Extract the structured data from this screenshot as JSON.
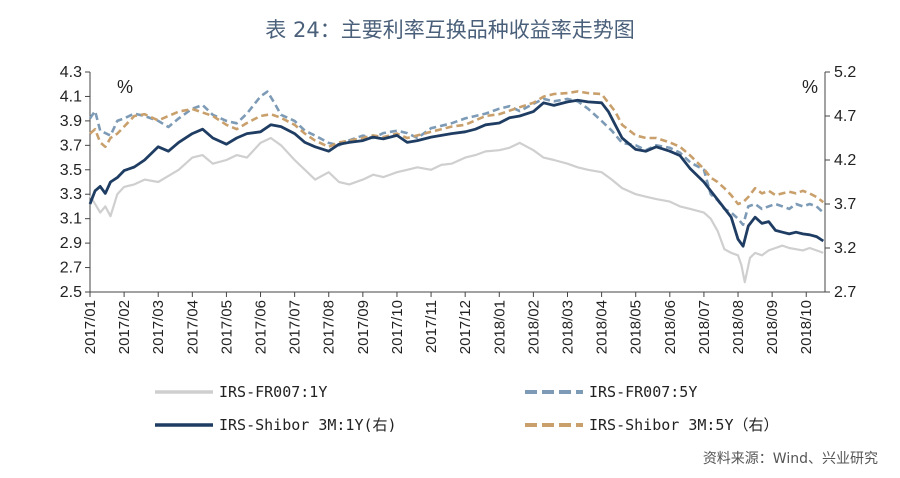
{
  "title": "表 24：主要利率互换品种收益率走势图",
  "source": "资料来源：Wind、兴业研究",
  "chart_data": {
    "type": "line",
    "left_unit": "%",
    "right_unit": "%",
    "left_axis": {
      "ticks": [
        "2.5",
        "2.7",
        "2.9",
        "3.1",
        "3.3",
        "3.5",
        "3.7",
        "3.9",
        "4.1",
        "4.3"
      ],
      "ylim": [
        2.5,
        4.3
      ]
    },
    "right_axis": {
      "ticks": [
        "2.7",
        "3.2",
        "3.7",
        "4.2",
        "4.7",
        "5.2"
      ],
      "ylim": [
        2.7,
        5.2
      ]
    },
    "x_ticks": [
      "2017/01",
      "2017/02",
      "2017/03",
      "2017/04",
      "2017/05",
      "2017/06",
      "2017/07",
      "2017/08",
      "2017/09",
      "2017/10",
      "2017/11",
      "2017/12",
      "2018/01",
      "2018/02",
      "2018/03",
      "2018/04",
      "2018/05",
      "2018/06",
      "2018/07",
      "2018/08",
      "2018/09",
      "2018/10"
    ],
    "x_range": [
      0,
      21.55
    ],
    "grid": false,
    "legend_position": "bottom",
    "series": [
      {
        "name": "IRS-FR007:1Y",
        "axis": "left",
        "color": "#cfcfcf",
        "style": "solid",
        "x": [
          0,
          0.15,
          0.3,
          0.45,
          0.6,
          0.8,
          1,
          1.3,
          1.6,
          2,
          2.3,
          2.6,
          3,
          3.3,
          3.6,
          4,
          4.3,
          4.6,
          5,
          5.3,
          5.6,
          6,
          6.3,
          6.6,
          7,
          7.3,
          7.6,
          8,
          8.3,
          8.6,
          9,
          9.3,
          9.6,
          10,
          10.3,
          10.6,
          11,
          11.3,
          11.6,
          12,
          12.3,
          12.6,
          13,
          13.3,
          13.6,
          14,
          14.3,
          14.6,
          15,
          15.3,
          15.6,
          16,
          16.3,
          16.6,
          17,
          17.3,
          17.6,
          18,
          18.2,
          18.4,
          18.6,
          18.8,
          19,
          19.1,
          19.2,
          19.35,
          19.5,
          19.7,
          19.9,
          20.1,
          20.3,
          20.5,
          20.7,
          20.9,
          21.1,
          21.3,
          21.5
        ],
        "y": [
          3.29,
          3.22,
          3.15,
          3.2,
          3.12,
          3.3,
          3.36,
          3.38,
          3.42,
          3.4,
          3.45,
          3.5,
          3.6,
          3.62,
          3.55,
          3.58,
          3.62,
          3.6,
          3.72,
          3.76,
          3.7,
          3.58,
          3.5,
          3.42,
          3.48,
          3.4,
          3.38,
          3.42,
          3.46,
          3.44,
          3.48,
          3.5,
          3.52,
          3.5,
          3.54,
          3.55,
          3.6,
          3.62,
          3.65,
          3.66,
          3.68,
          3.72,
          3.66,
          3.6,
          3.58,
          3.55,
          3.52,
          3.5,
          3.48,
          3.42,
          3.35,
          3.3,
          3.28,
          3.26,
          3.24,
          3.2,
          3.18,
          3.15,
          3.1,
          3.0,
          2.85,
          2.82,
          2.8,
          2.72,
          2.58,
          2.78,
          2.82,
          2.8,
          2.84,
          2.86,
          2.88,
          2.86,
          2.85,
          2.84,
          2.86,
          2.84,
          2.82
        ]
      },
      {
        "name": "IRS-FR007:5Y",
        "axis": "left",
        "color": "#7d9bb6",
        "style": "dashed",
        "x": [
          0,
          0.15,
          0.3,
          0.45,
          0.6,
          0.8,
          1,
          1.3,
          1.6,
          2,
          2.3,
          2.6,
          3,
          3.3,
          3.6,
          4,
          4.3,
          4.6,
          5,
          5.2,
          5.4,
          5.6,
          6,
          6.3,
          6.6,
          7,
          7.3,
          7.6,
          8,
          8.3,
          8.6,
          9,
          9.3,
          9.6,
          10,
          10.3,
          10.6,
          11,
          11.3,
          11.6,
          12,
          12.3,
          12.6,
          13,
          13.3,
          13.6,
          14,
          14.3,
          14.6,
          15,
          15.3,
          15.6,
          16,
          16.3,
          16.6,
          17,
          17.3,
          17.6,
          18,
          18.2,
          18.4,
          18.6,
          18.8,
          19,
          19.15,
          19.3,
          19.5,
          19.7,
          19.9,
          20.1,
          20.3,
          20.5,
          20.7,
          20.9,
          21.1,
          21.3,
          21.5
        ],
        "y": [
          3.92,
          3.98,
          3.82,
          3.8,
          3.78,
          3.9,
          3.92,
          3.96,
          3.94,
          3.9,
          3.85,
          3.92,
          4.0,
          4.03,
          3.95,
          3.9,
          3.88,
          3.96,
          4.1,
          4.14,
          4.05,
          3.95,
          3.9,
          3.82,
          3.78,
          3.72,
          3.7,
          3.74,
          3.78,
          3.76,
          3.8,
          3.82,
          3.8,
          3.76,
          3.84,
          3.86,
          3.88,
          3.92,
          3.94,
          3.96,
          4.0,
          4.02,
          3.98,
          4.04,
          4.08,
          4.06,
          4.08,
          4.06,
          4.0,
          3.9,
          3.82,
          3.72,
          3.7,
          3.66,
          3.7,
          3.68,
          3.64,
          3.56,
          3.5,
          3.3,
          3.25,
          3.18,
          3.15,
          3.1,
          3.05,
          3.2,
          3.22,
          3.18,
          3.2,
          3.22,
          3.2,
          3.18,
          3.22,
          3.2,
          3.22,
          3.2,
          3.15
        ]
      },
      {
        "name": "IRS-Shibor 3M:1Y(右)",
        "axis": "right",
        "color": "#1f3d63",
        "style": "solid",
        "x": [
          0,
          0.15,
          0.3,
          0.45,
          0.6,
          0.8,
          1,
          1.3,
          1.6,
          2,
          2.3,
          2.6,
          3,
          3.3,
          3.6,
          4,
          4.3,
          4.6,
          5,
          5.3,
          5.6,
          6,
          6.3,
          6.6,
          7,
          7.3,
          7.6,
          8,
          8.3,
          8.6,
          9,
          9.3,
          9.6,
          10,
          10.3,
          10.6,
          11,
          11.3,
          11.6,
          12,
          12.3,
          12.6,
          13,
          13.3,
          13.6,
          14,
          14.3,
          14.6,
          15,
          15.2,
          15.4,
          15.6,
          16,
          16.3,
          16.6,
          17,
          17.3,
          17.6,
          18,
          18.2,
          18.4,
          18.6,
          18.8,
          19,
          19.15,
          19.3,
          19.5,
          19.7,
          19.9,
          20.1,
          20.3,
          20.5,
          20.7,
          20.9,
          21.1,
          21.3,
          21.5
        ],
        "y": [
          3.7,
          3.85,
          3.9,
          3.82,
          3.95,
          4.0,
          4.08,
          4.12,
          4.2,
          4.35,
          4.3,
          4.4,
          4.5,
          4.55,
          4.45,
          4.38,
          4.45,
          4.5,
          4.52,
          4.6,
          4.58,
          4.5,
          4.4,
          4.35,
          4.3,
          4.38,
          4.4,
          4.42,
          4.46,
          4.44,
          4.48,
          4.4,
          4.42,
          4.46,
          4.48,
          4.5,
          4.52,
          4.55,
          4.6,
          4.62,
          4.68,
          4.7,
          4.75,
          4.85,
          4.82,
          4.86,
          4.88,
          4.86,
          4.85,
          4.75,
          4.6,
          4.45,
          4.32,
          4.3,
          4.35,
          4.3,
          4.25,
          4.1,
          3.95,
          3.85,
          3.75,
          3.65,
          3.55,
          3.3,
          3.22,
          3.45,
          3.55,
          3.48,
          3.5,
          3.4,
          3.38,
          3.36,
          3.38,
          3.36,
          3.35,
          3.33,
          3.28
        ]
      },
      {
        "name": "IRS-Shibor 3M:5Y（右）",
        "axis": "right",
        "color": "#c9a06c",
        "style": "dashed",
        "x": [
          0,
          0.15,
          0.3,
          0.45,
          0.6,
          0.8,
          1,
          1.3,
          1.6,
          2,
          2.3,
          2.6,
          3,
          3.3,
          3.6,
          4,
          4.3,
          4.6,
          5,
          5.3,
          5.6,
          6,
          6.3,
          6.6,
          7,
          7.3,
          7.6,
          8,
          8.3,
          8.6,
          9,
          9.3,
          9.6,
          10,
          10.3,
          10.6,
          11,
          11.3,
          11.6,
          12,
          12.3,
          12.6,
          13,
          13.3,
          13.6,
          14,
          14.3,
          14.6,
          15,
          15.2,
          15.4,
          15.6,
          16,
          16.3,
          16.6,
          17,
          17.3,
          17.6,
          18,
          18.2,
          18.4,
          18.6,
          18.8,
          19,
          19.15,
          19.3,
          19.5,
          19.7,
          19.9,
          20.1,
          20.3,
          20.5,
          20.7,
          20.9,
          21.1,
          21.3,
          21.5
        ],
        "y": [
          4.5,
          4.55,
          4.4,
          4.35,
          4.45,
          4.5,
          4.58,
          4.7,
          4.72,
          4.65,
          4.7,
          4.75,
          4.78,
          4.74,
          4.7,
          4.6,
          4.55,
          4.62,
          4.7,
          4.72,
          4.68,
          4.6,
          4.5,
          4.42,
          4.35,
          4.4,
          4.42,
          4.45,
          4.48,
          4.46,
          4.5,
          4.45,
          4.48,
          4.52,
          4.55,
          4.58,
          4.6,
          4.65,
          4.7,
          4.72,
          4.76,
          4.8,
          4.85,
          4.92,
          4.95,
          4.96,
          4.98,
          4.96,
          4.95,
          4.85,
          4.75,
          4.6,
          4.48,
          4.45,
          4.45,
          4.4,
          4.35,
          4.25,
          4.1,
          4.0,
          3.95,
          3.88,
          3.8,
          3.7,
          3.72,
          3.78,
          3.88,
          3.82,
          3.85,
          3.8,
          3.82,
          3.84,
          3.82,
          3.85,
          3.82,
          3.78,
          3.72
        ]
      }
    ]
  }
}
